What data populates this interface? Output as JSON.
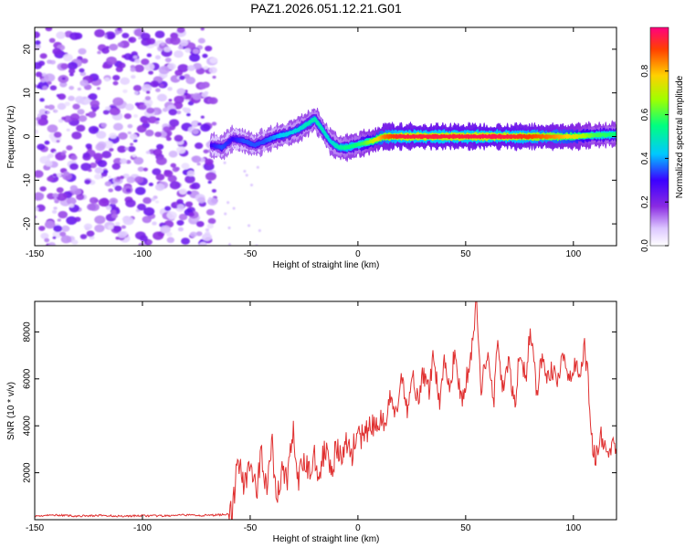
{
  "chart_data": [
    {
      "type": "heatmap",
      "title": "PAZ1.2026.051.12.21.G01",
      "xlabel": "Height of straight line (km)",
      "ylabel": "Frequency (Hz)",
      "xlim": [
        -150,
        120
      ],
      "ylim": [
        -25,
        25
      ],
      "xticks": [
        -150,
        -100,
        -50,
        0,
        50,
        100
      ],
      "yticks": [
        -20,
        -10,
        0,
        10,
        20
      ],
      "colorbar": {
        "label": "Normalized spectral amplitude",
        "range": [
          0,
          1
        ],
        "ticks": [
          0.0,
          0.2,
          0.4,
          0.6,
          0.8
        ],
        "colors": [
          "#ffffff",
          "#dcc6ff",
          "#8a2be2",
          "#3b00ff",
          "#00c8ff",
          "#00ff80",
          "#a0ff00",
          "#ffd000",
          "#ff4000",
          "#ff0080"
        ]
      },
      "noise_region": {
        "x_from": -150,
        "x_to": -66,
        "amplitude": 0.15
      },
      "signal_ridge": {
        "x": [
          -68,
          -63,
          -58,
          -53,
          -48,
          -43,
          -38,
          -33,
          -28,
          -23,
          -20,
          -17,
          -13,
          -9,
          -5,
          -1,
          3,
          7,
          12,
          20,
          30,
          40,
          50,
          60,
          70,
          80,
          90,
          100,
          110,
          120
        ],
        "freq": [
          -2.0,
          -2.5,
          -0.5,
          -1.0,
          -2.0,
          -1.0,
          0.0,
          0.5,
          1.5,
          3.0,
          4.0,
          2.0,
          -1.0,
          -2.5,
          -2.5,
          -2.0,
          -1.5,
          -1.0,
          0.0,
          0.0,
          0.0,
          0.0,
          0.0,
          0.0,
          0.0,
          0.0,
          0.0,
          0.0,
          0.3,
          0.5
        ],
        "amplitude": [
          0.3,
          0.35,
          0.3,
          0.35,
          0.35,
          0.35,
          0.4,
          0.45,
          0.45,
          0.5,
          0.5,
          0.5,
          0.45,
          0.5,
          0.55,
          0.55,
          0.6,
          0.7,
          0.85,
          0.95,
          0.95,
          0.95,
          0.95,
          0.97,
          0.95,
          0.9,
          0.85,
          0.75,
          0.6,
          0.55
        ]
      }
    },
    {
      "type": "line",
      "xlabel": "Height of straight line (km)",
      "ylabel": "SNR (10 * v/v)",
      "xlim": [
        -150,
        120
      ],
      "ylim": [
        0,
        9300
      ],
      "xticks": [
        -150,
        -100,
        -50,
        0,
        50,
        100
      ],
      "yticks": [
        2000,
        4000,
        6000,
        8000
      ],
      "series": [
        {
          "name": "SNR",
          "color": "#e03030",
          "x": [
            -150,
            -140,
            -130,
            -120,
            -110,
            -100,
            -90,
            -80,
            -70,
            -62,
            -58,
            -56,
            -53,
            -50,
            -47,
            -45,
            -42,
            -40,
            -38,
            -35,
            -33,
            -30,
            -28,
            -25,
            -22,
            -20,
            -18,
            -15,
            -12,
            -10,
            -8,
            -5,
            -3,
            0,
            3,
            5,
            8,
            10,
            13,
            15,
            18,
            20,
            23,
            25,
            28,
            30,
            33,
            35,
            38,
            40,
            43,
            45,
            48,
            50,
            52,
            55,
            57,
            60,
            63,
            65,
            67,
            70,
            73,
            75,
            78,
            80,
            83,
            85,
            88,
            90,
            93,
            95,
            98,
            100,
            103,
            105,
            107,
            108,
            110,
            113,
            115,
            118,
            120
          ],
          "values": [
            150,
            200,
            150,
            180,
            150,
            170,
            160,
            200,
            180,
            220,
            300,
            2800,
            1500,
            2600,
            900,
            2900,
            1200,
            3400,
            800,
            2200,
            1600,
            3900,
            1400,
            2600,
            2000,
            2800,
            1800,
            3200,
            2300,
            3000,
            2600,
            3300,
            2800,
            3700,
            3300,
            4100,
            3800,
            4400,
            4000,
            5300,
            4300,
            6000,
            4700,
            6300,
            5100,
            6200,
            5500,
            7000,
            5000,
            6800,
            5600,
            7400,
            4900,
            5900,
            6500,
            9300,
            5500,
            7200,
            5000,
            7800,
            5600,
            6600,
            4700,
            7300,
            6000,
            8200,
            5400,
            6900,
            5900,
            6400,
            5800,
            7000,
            6100,
            6500,
            6300,
            7400,
            5900,
            3800,
            2600,
            3600,
            2800,
            3100,
            3000
          ]
        }
      ]
    }
  ]
}
